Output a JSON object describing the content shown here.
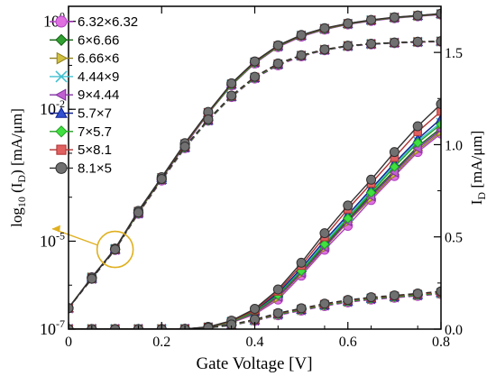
{
  "chart_data": {
    "type": "line",
    "xlabel": "Gate Voltage [V]",
    "ylabel_left": {
      "base": "log",
      "base_sub": "10",
      "open": " (I",
      "sub": "D",
      "close": ") [mA/μm]"
    },
    "ylabel_right": {
      "main": "I",
      "sub": "D",
      "rest": " [mA/μm]"
    },
    "x_ticks": [
      "0",
      "0.2",
      "0.4",
      "0.6",
      "0.8"
    ],
    "x_tick_values": [
      0,
      0.2,
      0.4,
      0.6,
      0.8
    ],
    "left_ticks": [
      {
        "base": "10",
        "exp": "0",
        "value": 1
      },
      {
        "base": "10",
        "exp": "-2",
        "value": 0.01
      },
      {
        "base": "10",
        "exp": "-5",
        "value": 1e-05
      },
      {
        "base": "10",
        "exp": "-7",
        "value": 1e-07
      }
    ],
    "right_ticks": [
      "0.0",
      "0.5",
      "1.0",
      "1.5"
    ],
    "right_tick_values": [
      0,
      0.5,
      1.0,
      1.5
    ],
    "xlim": [
      0,
      0.8
    ],
    "ylim_left_log": [
      1e-07,
      2.2
    ],
    "ylim_right": [
      0,
      1.75
    ],
    "annotation_color": "#e0b020",
    "legend_position": "top-left",
    "x": [
      0,
      0.05,
      0.1,
      0.15,
      0.2,
      0.25,
      0.3,
      0.35,
      0.4,
      0.45,
      0.5,
      0.55,
      0.6,
      0.65,
      0.7,
      0.75,
      0.8
    ],
    "series": [
      {
        "name": "6.32×6.32",
        "marker": "circle",
        "color": "#e070e0",
        "edge": "#b040c0",
        "log_solid": [
          3e-07,
          1.5e-06,
          6.5e-06,
          4.5e-05,
          0.00026,
          0.0015,
          0.008,
          0.035,
          0.11,
          0.26,
          0.45,
          0.65,
          0.85,
          1.02,
          1.18,
          1.3,
          1.42
        ],
        "log_dashed": [
          3e-07,
          1.4e-06,
          6.3e-06,
          4.2e-05,
          0.00024,
          0.0013,
          0.0055,
          0.019,
          0.05,
          0.1,
          0.16,
          0.22,
          0.27,
          0.3,
          0.32,
          0.335,
          0.345
        ],
        "lin_solid": [
          0,
          0,
          0,
          0,
          0,
          0.001,
          0.008,
          0.035,
          0.08,
          0.16,
          0.29,
          0.43,
          0.56,
          0.7,
          0.83,
          0.96,
          1.06
        ],
        "lin_dashed": [
          0,
          0,
          0,
          0,
          0,
          0.001,
          0.006,
          0.02,
          0.045,
          0.075,
          0.1,
          0.125,
          0.145,
          0.16,
          0.17,
          0.18,
          0.19
        ]
      },
      {
        "name": "6×6.66",
        "marker": "diamond",
        "color": "#30a030",
        "edge": "#106010",
        "log_solid": [
          3e-07,
          1.5e-06,
          6.6e-06,
          4.6e-05,
          0.00027,
          0.0016,
          0.0082,
          0.036,
          0.115,
          0.27,
          0.47,
          0.67,
          0.87,
          1.05,
          1.21,
          1.33,
          1.46
        ],
        "log_dashed": [
          3e-07,
          1.4e-06,
          6.4e-06,
          4.3e-05,
          0.00025,
          0.00135,
          0.0056,
          0.0195,
          0.052,
          0.105,
          0.165,
          0.225,
          0.275,
          0.305,
          0.325,
          0.34,
          0.35
        ],
        "lin_solid": [
          0,
          0,
          0,
          0,
          0,
          0.001,
          0.009,
          0.038,
          0.09,
          0.18,
          0.31,
          0.45,
          0.59,
          0.73,
          0.86,
          0.99,
          1.09
        ],
        "lin_dashed": [
          0,
          0,
          0,
          0,
          0,
          0.001,
          0.007,
          0.022,
          0.048,
          0.08,
          0.105,
          0.13,
          0.15,
          0.165,
          0.175,
          0.185,
          0.195
        ]
      },
      {
        "name": "6.66×6",
        "marker": "tri-right",
        "color": "#d0c040",
        "edge": "#908020",
        "log_solid": [
          3e-07,
          1.5e-06,
          6.6e-06,
          4.6e-05,
          0.00027,
          0.0016,
          0.0082,
          0.036,
          0.115,
          0.27,
          0.47,
          0.67,
          0.87,
          1.05,
          1.21,
          1.33,
          1.46
        ],
        "log_dashed": [
          3e-07,
          1.4e-06,
          6.4e-06,
          4.3e-05,
          0.00025,
          0.00135,
          0.0056,
          0.0195,
          0.052,
          0.105,
          0.165,
          0.225,
          0.275,
          0.305,
          0.325,
          0.34,
          0.35
        ],
        "lin_solid": [
          0,
          0,
          0,
          0,
          0,
          0.001,
          0.009,
          0.036,
          0.085,
          0.17,
          0.3,
          0.44,
          0.58,
          0.71,
          0.84,
          0.97,
          1.07
        ],
        "lin_dashed": [
          0,
          0,
          0,
          0,
          0,
          0.001,
          0.007,
          0.021,
          0.047,
          0.078,
          0.103,
          0.128,
          0.148,
          0.163,
          0.173,
          0.183,
          0.193
        ]
      },
      {
        "name": "4.44×9",
        "marker": "x",
        "color": "#40c0d0",
        "edge": "#40c0d0",
        "log_solid": [
          3e-07,
          1.5e-06,
          6.7e-06,
          4.7e-05,
          0.000275,
          0.0016,
          0.0083,
          0.037,
          0.117,
          0.275,
          0.475,
          0.68,
          0.88,
          1.06,
          1.22,
          1.34,
          1.47
        ],
        "log_dashed": [
          3e-07,
          1.4e-06,
          6.4e-06,
          4.3e-05,
          0.00025,
          0.00135,
          0.0056,
          0.0195,
          0.052,
          0.105,
          0.165,
          0.225,
          0.275,
          0.305,
          0.325,
          0.34,
          0.35
        ],
        "lin_solid": [
          0,
          0,
          0,
          0,
          0,
          0.001,
          0.01,
          0.04,
          0.095,
          0.19,
          0.32,
          0.47,
          0.61,
          0.75,
          0.89,
          1.02,
          1.12
        ],
        "lin_dashed": [
          0,
          0,
          0,
          0,
          0,
          0.001,
          0.007,
          0.022,
          0.048,
          0.08,
          0.105,
          0.13,
          0.15,
          0.165,
          0.175,
          0.185,
          0.195
        ]
      },
      {
        "name": "9×4.44",
        "marker": "tri-left",
        "color": "#c060d0",
        "edge": "#8030a0",
        "log_solid": [
          3e-07,
          1.5e-06,
          6.6e-06,
          4.6e-05,
          0.00027,
          0.0016,
          0.0082,
          0.036,
          0.115,
          0.27,
          0.47,
          0.67,
          0.87,
          1.05,
          1.21,
          1.33,
          1.46
        ],
        "log_dashed": [
          3e-07,
          1.4e-06,
          6.4e-06,
          4.3e-05,
          0.00025,
          0.00135,
          0.0056,
          0.0195,
          0.052,
          0.105,
          0.165,
          0.225,
          0.275,
          0.305,
          0.325,
          0.34,
          0.35
        ],
        "lin_solid": [
          0,
          0,
          0,
          0,
          0,
          0.001,
          0.009,
          0.037,
          0.088,
          0.175,
          0.305,
          0.445,
          0.585,
          0.72,
          0.85,
          0.98,
          1.08
        ],
        "lin_dashed": [
          0,
          0,
          0,
          0,
          0,
          0.001,
          0.007,
          0.021,
          0.047,
          0.078,
          0.103,
          0.128,
          0.148,
          0.163,
          0.173,
          0.183,
          0.193
        ]
      },
      {
        "name": "5.7×7",
        "marker": "tri-up",
        "color": "#3050d0",
        "edge": "#102090",
        "log_solid": [
          3e-07,
          1.5e-06,
          6.7e-06,
          4.7e-05,
          0.000275,
          0.0016,
          0.0083,
          0.037,
          0.117,
          0.275,
          0.475,
          0.68,
          0.88,
          1.06,
          1.22,
          1.34,
          1.47
        ],
        "log_dashed": [
          3e-07,
          1.4e-06,
          6.4e-06,
          4.3e-05,
          0.00025,
          0.00135,
          0.0056,
          0.0195,
          0.052,
          0.105,
          0.165,
          0.225,
          0.275,
          0.305,
          0.325,
          0.34,
          0.35
        ],
        "lin_solid": [
          0,
          0,
          0,
          0,
          0,
          0.001,
          0.01,
          0.041,
          0.098,
          0.195,
          0.33,
          0.48,
          0.62,
          0.76,
          0.9,
          1.03,
          1.14
        ],
        "lin_dashed": [
          0,
          0,
          0,
          0,
          0,
          0.001,
          0.007,
          0.022,
          0.049,
          0.081,
          0.106,
          0.131,
          0.151,
          0.166,
          0.176,
          0.186,
          0.196
        ]
      },
      {
        "name": "7×5.7",
        "marker": "diamond",
        "color": "#40e040",
        "edge": "#20a020",
        "log_solid": [
          3e-07,
          1.5e-06,
          6.6e-06,
          4.6e-05,
          0.00027,
          0.0016,
          0.0082,
          0.036,
          0.115,
          0.27,
          0.47,
          0.67,
          0.87,
          1.05,
          1.21,
          1.33,
          1.46
        ],
        "log_dashed": [
          3e-07,
          1.4e-06,
          6.4e-06,
          4.3e-05,
          0.00025,
          0.00135,
          0.0056,
          0.0195,
          0.052,
          0.105,
          0.165,
          0.225,
          0.275,
          0.305,
          0.325,
          0.34,
          0.35
        ],
        "lin_solid": [
          0,
          0,
          0,
          0,
          0,
          0.001,
          0.01,
          0.039,
          0.093,
          0.185,
          0.315,
          0.46,
          0.6,
          0.74,
          0.88,
          1.01,
          1.11
        ],
        "lin_dashed": [
          0,
          0,
          0,
          0,
          0,
          0.001,
          0.007,
          0.022,
          0.048,
          0.08,
          0.105,
          0.13,
          0.15,
          0.165,
          0.175,
          0.185,
          0.195
        ]
      },
      {
        "name": "5×8.1",
        "marker": "square",
        "color": "#e06060",
        "edge": "#b03030",
        "log_solid": [
          3e-07,
          1.5e-06,
          6.7e-06,
          4.8e-05,
          0.00028,
          0.00165,
          0.0085,
          0.038,
          0.12,
          0.28,
          0.48,
          0.69,
          0.89,
          1.07,
          1.23,
          1.35,
          1.48
        ],
        "log_dashed": [
          3e-07,
          1.4e-06,
          6.5e-06,
          4.4e-05,
          0.000255,
          0.0014,
          0.0058,
          0.02,
          0.054,
          0.108,
          0.168,
          0.228,
          0.278,
          0.308,
          0.328,
          0.343,
          0.353
        ],
        "lin_solid": [
          0,
          0,
          0,
          0,
          0,
          0.001,
          0.011,
          0.043,
          0.103,
          0.205,
          0.345,
          0.5,
          0.65,
          0.79,
          0.93,
          1.07,
          1.18
        ],
        "lin_dashed": [
          0,
          0,
          0,
          0,
          0,
          0.001,
          0.008,
          0.024,
          0.051,
          0.084,
          0.11,
          0.135,
          0.155,
          0.17,
          0.18,
          0.19,
          0.2
        ]
      },
      {
        "name": "8.1×5",
        "marker": "circle",
        "color": "#707070",
        "edge": "#303030",
        "log_solid": [
          3e-07,
          1.5e-06,
          6.8e-06,
          4.9e-05,
          0.000285,
          0.0017,
          0.0087,
          0.039,
          0.123,
          0.285,
          0.49,
          0.7,
          0.9,
          1.08,
          1.24,
          1.36,
          1.5
        ],
        "log_dashed": [
          3e-07,
          1.4e-06,
          6.5e-06,
          4.5e-05,
          0.00026,
          0.00142,
          0.0059,
          0.0205,
          0.055,
          0.11,
          0.17,
          0.23,
          0.28,
          0.31,
          0.33,
          0.345,
          0.355
        ],
        "lin_solid": [
          0,
          0,
          0,
          0,
          0,
          0.001,
          0.012,
          0.046,
          0.11,
          0.215,
          0.36,
          0.52,
          0.67,
          0.81,
          0.96,
          1.1,
          1.22
        ],
        "lin_dashed": [
          0,
          0,
          0,
          0,
          0,
          0.001,
          0.008,
          0.025,
          0.053,
          0.087,
          0.113,
          0.138,
          0.158,
          0.173,
          0.183,
          0.193,
          0.205
        ]
      }
    ]
  }
}
